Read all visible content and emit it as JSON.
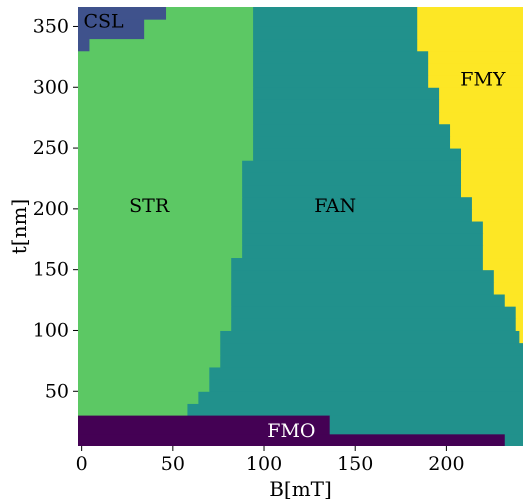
{
  "chart_data": {
    "type": "heatmap",
    "title": "",
    "xlabel": "B[mT]",
    "ylabel": "t[nm]",
    "xlim": [
      -2,
      242
    ],
    "ylim": [
      5,
      366
    ],
    "xticks": [
      0,
      50,
      100,
      150,
      200
    ],
    "yticks": [
      50,
      100,
      150,
      200,
      250,
      300,
      350
    ],
    "grid": false,
    "colors": {
      "CSL": "#3f528c",
      "STR": "#5cc864",
      "FAN": "#21918c",
      "FMY": "#fde725",
      "FMO": "#440154"
    },
    "region_labels": [
      {
        "name": "CSL",
        "x": 12,
        "y": 355,
        "color": "#000000"
      },
      {
        "name": "STR",
        "x": 37,
        "y": 203,
        "color": "#000000"
      },
      {
        "name": "FAN",
        "x": 139,
        "y": 203,
        "color": "#000000"
      },
      {
        "name": "FMY",
        "x": 220,
        "y": 307,
        "color": "#000000"
      },
      {
        "name": "FMO",
        "x": 115,
        "y": 18,
        "color": "#ffffff"
      }
    ],
    "FMO_boundary": [
      {
        "t_min": 5,
        "t_max": 15,
        "B_max": 232
      },
      {
        "t_min": 15,
        "t_max": 30,
        "B_max": 136
      }
    ],
    "phase_boundaries": [
      {
        "t_min": 30,
        "t_max": 40,
        "STR_FAN": 58,
        "FAN_FMY": 242
      },
      {
        "t_min": 40,
        "t_max": 50,
        "STR_FAN": 64,
        "FAN_FMY": 242
      },
      {
        "t_min": 50,
        "t_max": 60,
        "STR_FAN": 70,
        "FAN_FMY": 242
      },
      {
        "t_min": 60,
        "t_max": 70,
        "STR_FAN": 70,
        "FAN_FMY": 242
      },
      {
        "t_min": 70,
        "t_max": 80,
        "STR_FAN": 76,
        "FAN_FMY": 242
      },
      {
        "t_min": 80,
        "t_max": 90,
        "STR_FAN": 76,
        "FAN_FMY": 242
      },
      {
        "t_min": 90,
        "t_max": 100,
        "STR_FAN": 76,
        "FAN_FMY": 240
      },
      {
        "t_min": 100,
        "t_max": 110,
        "STR_FAN": 82,
        "FAN_FMY": 238
      },
      {
        "t_min": 110,
        "t_max": 120,
        "STR_FAN": 82,
        "FAN_FMY": 238
      },
      {
        "t_min": 120,
        "t_max": 130,
        "STR_FAN": 82,
        "FAN_FMY": 232
      },
      {
        "t_min": 130,
        "t_max": 140,
        "STR_FAN": 82,
        "FAN_FMY": 226
      },
      {
        "t_min": 140,
        "t_max": 150,
        "STR_FAN": 82,
        "FAN_FMY": 226
      },
      {
        "t_min": 150,
        "t_max": 160,
        "STR_FAN": 82,
        "FAN_FMY": 220
      },
      {
        "t_min": 160,
        "t_max": 170,
        "STR_FAN": 88,
        "FAN_FMY": 220
      },
      {
        "t_min": 170,
        "t_max": 180,
        "STR_FAN": 88,
        "FAN_FMY": 220
      },
      {
        "t_min": 180,
        "t_max": 190,
        "STR_FAN": 88,
        "FAN_FMY": 220
      },
      {
        "t_min": 190,
        "t_max": 200,
        "STR_FAN": 88,
        "FAN_FMY": 214
      },
      {
        "t_min": 200,
        "t_max": 210,
        "STR_FAN": 88,
        "FAN_FMY": 214
      },
      {
        "t_min": 210,
        "t_max": 220,
        "STR_FAN": 88,
        "FAN_FMY": 208
      },
      {
        "t_min": 220,
        "t_max": 230,
        "STR_FAN": 88,
        "FAN_FMY": 208
      },
      {
        "t_min": 230,
        "t_max": 240,
        "STR_FAN": 88,
        "FAN_FMY": 208
      },
      {
        "t_min": 240,
        "t_max": 250,
        "STR_FAN": 94,
        "FAN_FMY": 208
      },
      {
        "t_min": 250,
        "t_max": 260,
        "STR_FAN": 94,
        "FAN_FMY": 202
      },
      {
        "t_min": 260,
        "t_max": 270,
        "STR_FAN": 94,
        "FAN_FMY": 202
      },
      {
        "t_min": 270,
        "t_max": 280,
        "STR_FAN": 94,
        "FAN_FMY": 196
      },
      {
        "t_min": 280,
        "t_max": 290,
        "STR_FAN": 94,
        "FAN_FMY": 196
      },
      {
        "t_min": 290,
        "t_max": 300,
        "STR_FAN": 94,
        "FAN_FMY": 196
      },
      {
        "t_min": 300,
        "t_max": 310,
        "STR_FAN": 94,
        "FAN_FMY": 190
      },
      {
        "t_min": 310,
        "t_max": 320,
        "STR_FAN": 94,
        "FAN_FMY": 190
      },
      {
        "t_min": 320,
        "t_max": 330,
        "STR_FAN": 94,
        "FAN_FMY": 190
      },
      {
        "t_min": 330,
        "t_max": 340,
        "STR_FAN": 94,
        "FAN_FMY": 184
      },
      {
        "t_min": 340,
        "t_max": 350,
        "STR_FAN": 94,
        "FAN_FMY": 184
      },
      {
        "t_min": 350,
        "t_max": 366,
        "STR_FAN": 94,
        "FAN_FMY": 184
      }
    ],
    "CSL_boundary": [
      {
        "t_min": 330,
        "t_max": 340,
        "B_max": 4
      },
      {
        "t_min": 340,
        "t_max": 356,
        "B_max": 34
      },
      {
        "t_min": 356,
        "t_max": 366,
        "B_max": 46
      }
    ]
  }
}
